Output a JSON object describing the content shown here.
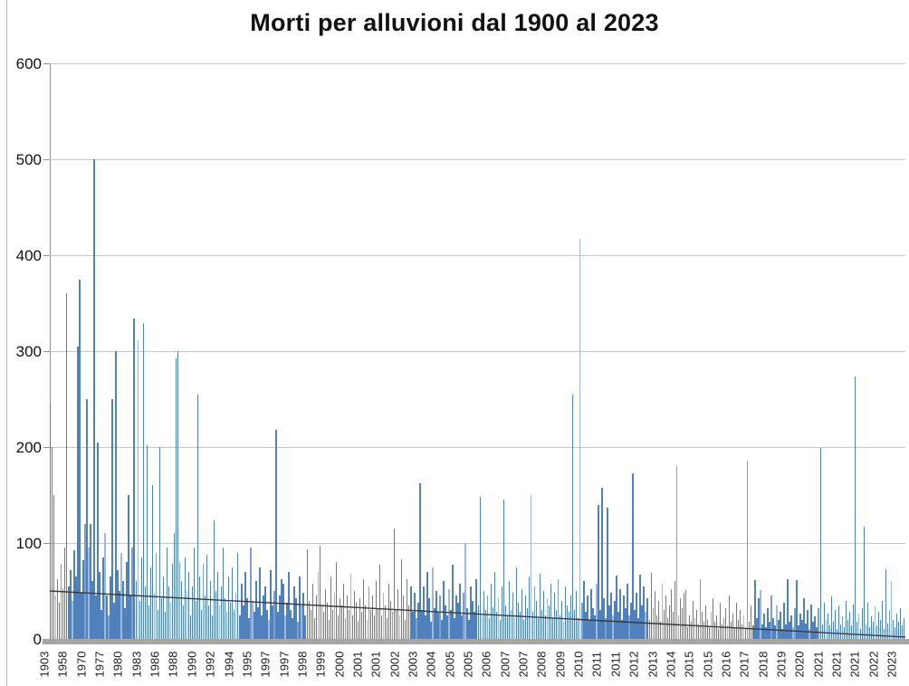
{
  "page": {
    "background": "#ffffff"
  },
  "chart_data": {
    "type": "bar",
    "title": "Morti per alluvioni dal 1900 al 2023",
    "xlabel": "",
    "ylabel": "",
    "ylim": [
      0,
      600
    ],
    "yticks": [
      0,
      100,
      200,
      300,
      400,
      500,
      600
    ],
    "grid": true,
    "legend": "none",
    "bar_color": "#4f81bd",
    "grid_color": "#c6c6c6",
    "axis_color": "#8f8f8f",
    "axis_band_color": "#a6a6a6",
    "trendline": {
      "start_value": 50,
      "end_value": 2,
      "color": "#3a3a3a"
    },
    "x_tick_labels": [
      "1903",
      "1958",
      "1970",
      "1977",
      "1980",
      "1983",
      "1986",
      "1988",
      "1990",
      "1992",
      "1994",
      "1995",
      "1997",
      "1997",
      "1998",
      "1999",
      "2000",
      "2001",
      "2001",
      "2002",
      "2003",
      "2004",
      "2005",
      "2005",
      "2006",
      "2007",
      "2007",
      "2008",
      "2009",
      "2010",
      "2011",
      "2011",
      "2012",
      "2013",
      "2014",
      "2015",
      "2015",
      "2016",
      "2017",
      "2018",
      "2019",
      "2020",
      "2021",
      "2021",
      "2021",
      "2022",
      "2023"
    ],
    "values": [
      245,
      200,
      150,
      45,
      62,
      38,
      78,
      52,
      95,
      360,
      55,
      72,
      40,
      92,
      65,
      305,
      375,
      48,
      82,
      120,
      250,
      95,
      120,
      60,
      500,
      45,
      205,
      70,
      30,
      85,
      110,
      45,
      25,
      65,
      250,
      38,
      300,
      72,
      50,
      90,
      60,
      32,
      80,
      150,
      45,
      95,
      334,
      60,
      311,
      40,
      85,
      329,
      55,
      202,
      35,
      75,
      160,
      48,
      90,
      30,
      200,
      42,
      65,
      28,
      95,
      55,
      38,
      78,
      110,
      292,
      300,
      80,
      60,
      35,
      85,
      50,
      70,
      25,
      55,
      95,
      40,
      255,
      65,
      30,
      78,
      45,
      88,
      35,
      60,
      25,
      124,
      50,
      70,
      35,
      55,
      95,
      42,
      28,
      65,
      38,
      75,
      30,
      48,
      90,
      25,
      58,
      35,
      70,
      42,
      22,
      95,
      40,
      28,
      60,
      33,
      75,
      25,
      45,
      55,
      30,
      20,
      72,
      35,
      50,
      218,
      28,
      45,
      62,
      58,
      25,
      38,
      70,
      30,
      22,
      55,
      42,
      18,
      65,
      35,
      48,
      25,
      93,
      40,
      30,
      58,
      22,
      45,
      70,
      97,
      35,
      28,
      52,
      38,
      20,
      65,
      30,
      48,
      80,
      25,
      42,
      35,
      58,
      22,
      45,
      30,
      68,
      25,
      50,
      38,
      18,
      42,
      28,
      62,
      35,
      20,
      55,
      30,
      45,
      25,
      60,
      32,
      77,
      25,
      48,
      35,
      22,
      58,
      40,
      28,
      115,
      30,
      52,
      25,
      83,
      45,
      20,
      62,
      35,
      55,
      28,
      48,
      22,
      38,
      162,
      30,
      55,
      25,
      70,
      42,
      18,
      75,
      32,
      50,
      28,
      45,
      20,
      60,
      35,
      25,
      52,
      30,
      77,
      22,
      45,
      38,
      58,
      25,
      48,
      100,
      32,
      20,
      55,
      40,
      28,
      62,
      35,
      148,
      25,
      50,
      30,
      45,
      22,
      58,
      33,
      70,
      28,
      42,
      20,
      55,
      145,
      35,
      25,
      60,
      30,
      48,
      22,
      75,
      38,
      28,
      52,
      20,
      45,
      32,
      65,
      150,
      28,
      55,
      40,
      22,
      68,
      30,
      50,
      25,
      42,
      35,
      58,
      22,
      48,
      30,
      62,
      25,
      40,
      18,
      55,
      35,
      28,
      45,
      255,
      30,
      50,
      22,
      417,
      38,
      60,
      28,
      45,
      20,
      52,
      32,
      25,
      58,
      140,
      30,
      158,
      42,
      22,
      137,
      35,
      48,
      25,
      40,
      66,
      28,
      52,
      20,
      45,
      32,
      58,
      25,
      38,
      173,
      30,
      48,
      22,
      67,
      35,
      55,
      28,
      42,
      20,
      69,
      32,
      50,
      25,
      40,
      18,
      58,
      30,
      45,
      22,
      35,
      52,
      28,
      60,
      180,
      25,
      42,
      32,
      48,
      51,
      12,
      25,
      18,
      40,
      22,
      30,
      15,
      62,
      28,
      18,
      35,
      20,
      12,
      28,
      42,
      18,
      25,
      10,
      38,
      15,
      22,
      32,
      14,
      45,
      18,
      26,
      12,
      38,
      20,
      30,
      15,
      25,
      10,
      186,
      18,
      35,
      14,
      61,
      22,
      42,
      51,
      15,
      26,
      12,
      32,
      18,
      45,
      22,
      14,
      35,
      20,
      28,
      10,
      38,
      15,
      62,
      18,
      25,
      12,
      32,
      61,
      14,
      26,
      20,
      42,
      16,
      30,
      10,
      36,
      18,
      24,
      12,
      32,
      199,
      15,
      38,
      20,
      26,
      14,
      44,
      18,
      30,
      10,
      35,
      15,
      24,
      12,
      40,
      20,
      28,
      14,
      36,
      274,
      18,
      26,
      10,
      32,
      117,
      15,
      38,
      12,
      24,
      18,
      34,
      14,
      28,
      20,
      40,
      10,
      73,
      16,
      30,
      60,
      20,
      12,
      26,
      18,
      32,
      14,
      22
    ]
  }
}
